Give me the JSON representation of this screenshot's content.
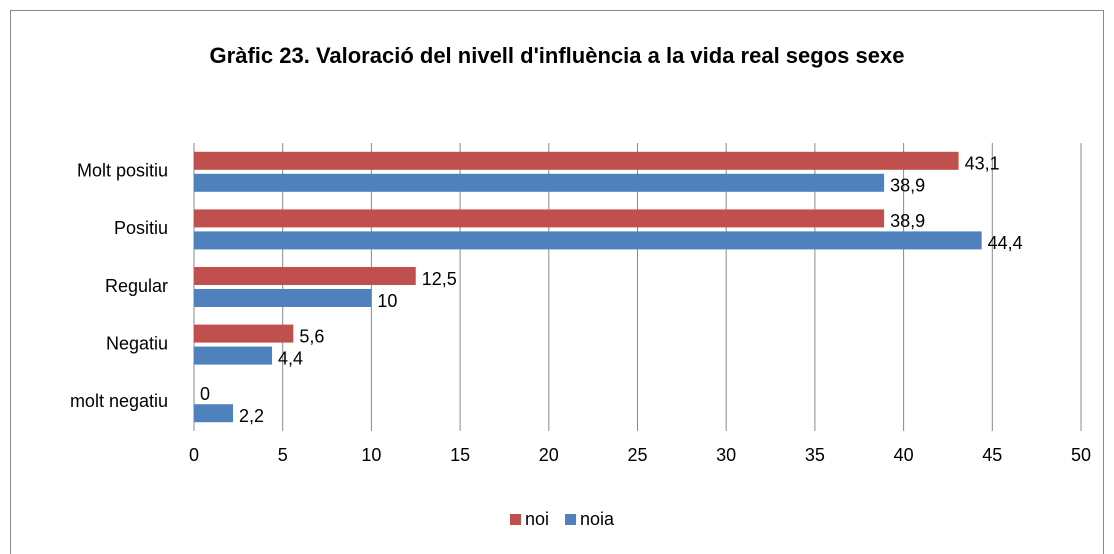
{
  "chart_data": {
    "type": "bar",
    "orientation": "horizontal",
    "title": "Gràfic 23. Valoració del nivell d'influència a la vida real segos sexe",
    "categories": [
      "Molt positiu",
      "Positiu",
      "Regular",
      "Negatiu",
      "molt negatiu"
    ],
    "series": [
      {
        "name": "noi",
        "color": "#c0504d",
        "values": [
          43.1,
          38.9,
          12.5,
          5.6,
          0
        ],
        "value_labels": [
          "43,1",
          "38,9",
          "12,5",
          "5,6",
          "0"
        ]
      },
      {
        "name": "noia",
        "color": "#4f81bd",
        "values": [
          38.9,
          44.4,
          10,
          4.4,
          2.2
        ],
        "value_labels": [
          "38,9",
          "44,4",
          "10",
          "4,4",
          "2,2"
        ]
      }
    ],
    "xlim": [
      0,
      50
    ],
    "xticks": [
      0,
      5,
      10,
      15,
      20,
      25,
      30,
      35,
      40,
      45,
      50
    ],
    "grid": true,
    "legend": "bottom"
  }
}
